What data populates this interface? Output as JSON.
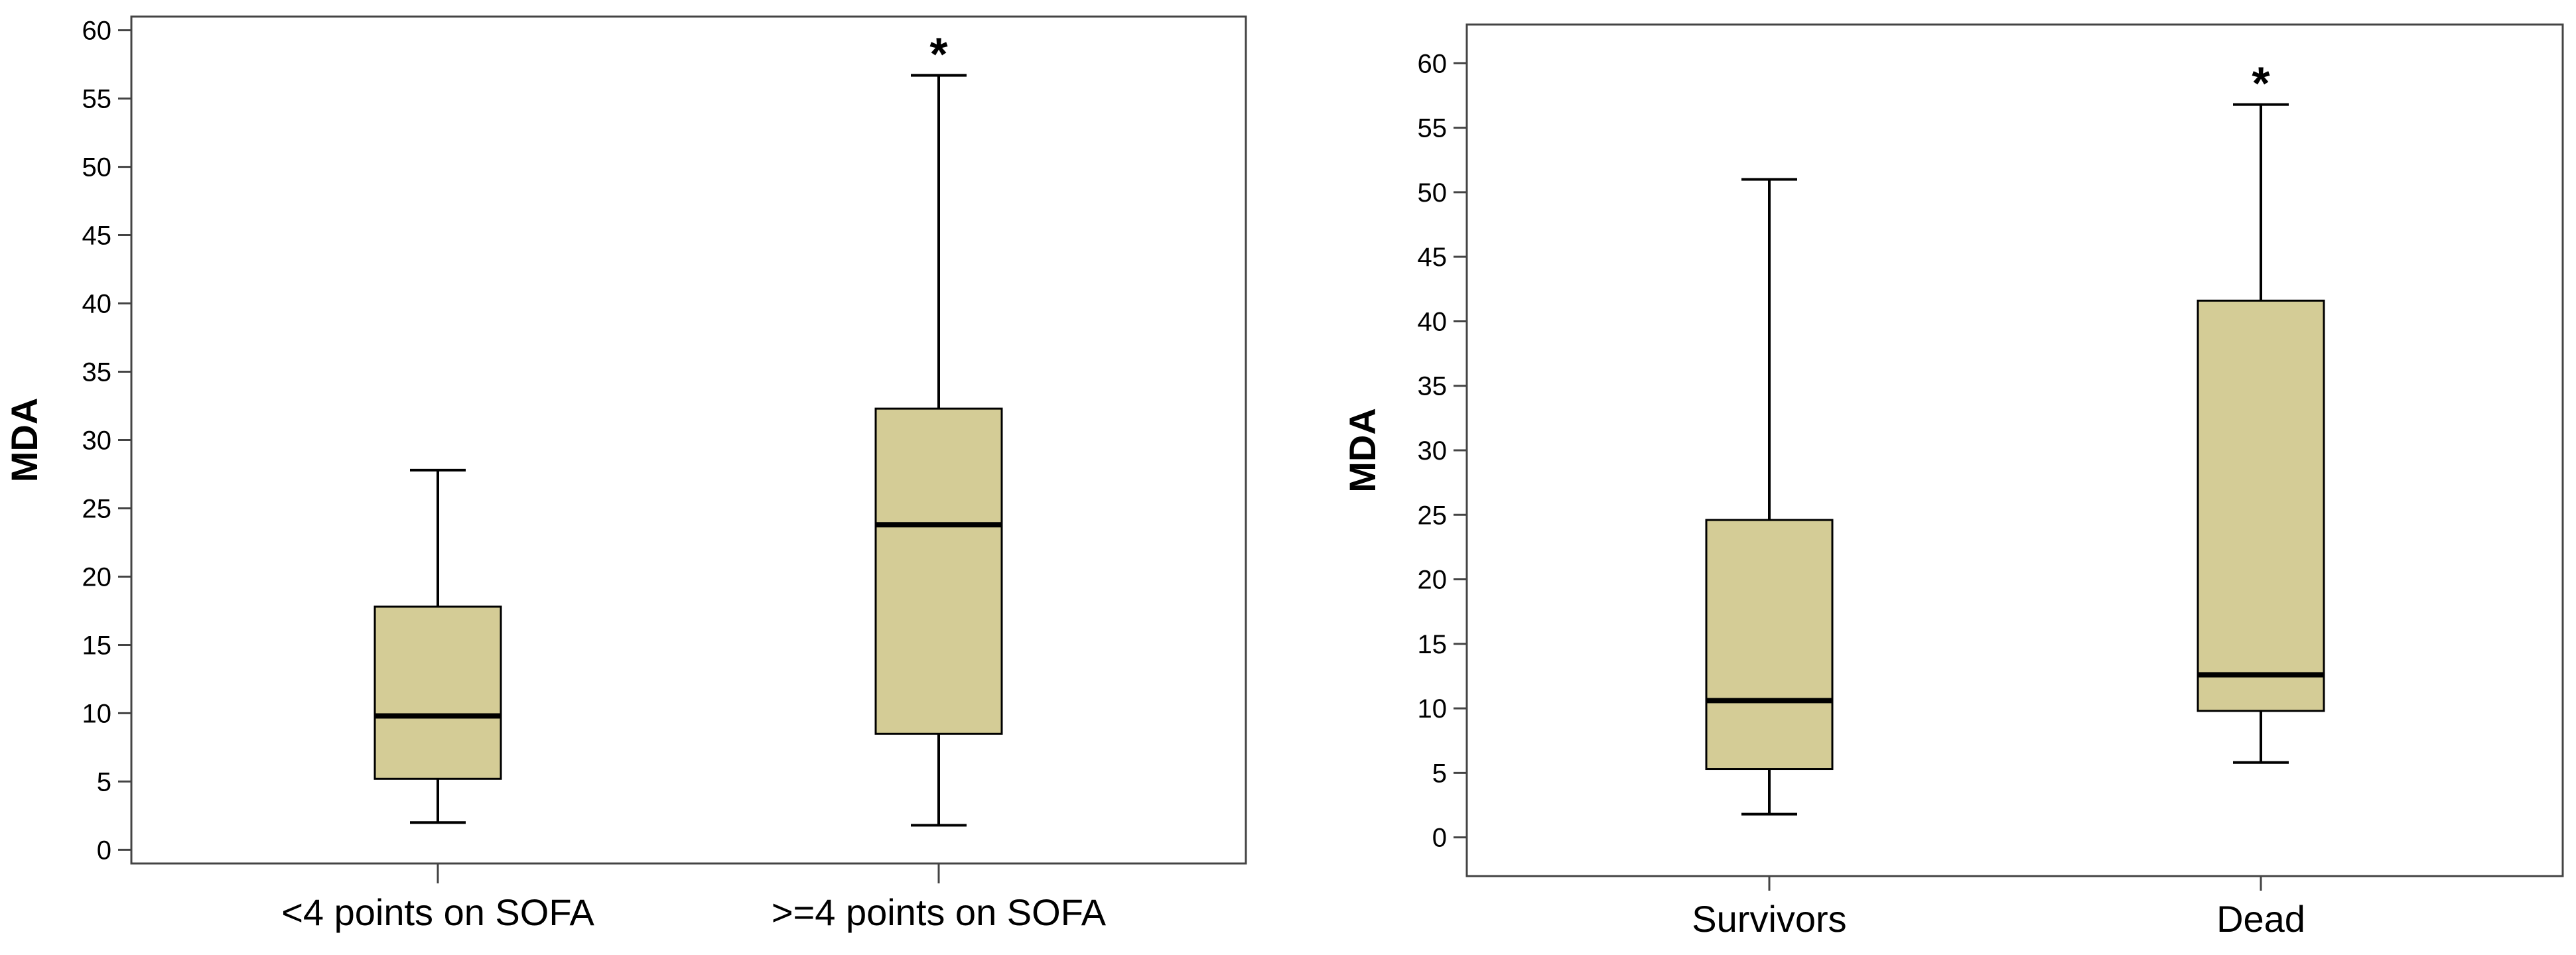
{
  "style": {
    "box_fill": "#d4cc96",
    "line_color": "#000000",
    "background": "#ffffff"
  },
  "chart_data": [
    {
      "type": "box",
      "title": "",
      "xlabel": "",
      "ylabel": "MDA",
      "ylim": [
        -1,
        61
      ],
      "yticks": [
        0,
        5,
        10,
        15,
        20,
        25,
        30,
        35,
        40,
        45,
        50,
        55,
        60
      ],
      "categories": [
        "<4 points on SOFA",
        ">=4 points on SOFA"
      ],
      "boxes": [
        {
          "category": "<4 points on SOFA",
          "whisker_low": 2,
          "q1": 5.2,
          "median": 9.8,
          "q3": 17.8,
          "whisker_high": 27.8,
          "annotation": ""
        },
        {
          "category": ">=4 points on SOFA",
          "whisker_low": 1.8,
          "q1": 8.5,
          "median": 23.8,
          "q3": 32.3,
          "whisker_high": 56.7,
          "annotation": "*"
        }
      ]
    },
    {
      "type": "box",
      "title": "",
      "xlabel": "",
      "ylabel": "MDA",
      "ylim": [
        -3,
        63
      ],
      "yticks": [
        0,
        5,
        10,
        15,
        20,
        25,
        30,
        35,
        40,
        45,
        50,
        55,
        60
      ],
      "categories": [
        "Survivors",
        "Dead"
      ],
      "boxes": [
        {
          "category": "Survivors",
          "whisker_low": 1.8,
          "q1": 5.3,
          "median": 10.6,
          "q3": 24.6,
          "whisker_high": 51,
          "annotation": ""
        },
        {
          "category": "Dead",
          "whisker_low": 5.8,
          "q1": 9.8,
          "median": 12.6,
          "q3": 41.6,
          "whisker_high": 56.8,
          "annotation": "*"
        }
      ]
    }
  ]
}
